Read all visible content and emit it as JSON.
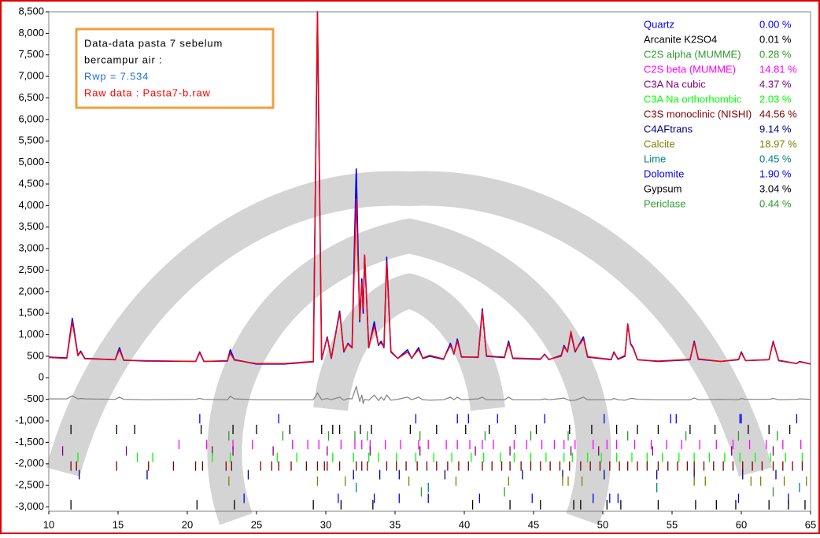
{
  "chart_data": {
    "type": "line",
    "annotation": {
      "lines": [
        "Data-data pasta 7 sebelum",
        "bercampur air :",
        "Rwp =  7.534",
        "Raw data : Pasta7-b.raw"
      ],
      "colors": [
        "#000000",
        "#000000",
        "#1f6fd0",
        "#ff0000"
      ]
    },
    "xlim": [
      10,
      65
    ],
    "xticks": [
      10,
      15,
      20,
      25,
      30,
      35,
      40,
      45,
      50,
      55,
      60,
      65
    ],
    "ylim": [
      -3100,
      8500
    ],
    "yticks": [
      {
        "value": -3000,
        "label": "-3,000"
      },
      {
        "value": -2500,
        "label": "-2,500"
      },
      {
        "value": -2000,
        "label": "-2,000"
      },
      {
        "value": -1500,
        "label": "-1,500"
      },
      {
        "value": -1000,
        "label": "-1,000"
      },
      -500,
      0,
      500,
      {
        "value": 1000,
        "label": "1,000"
      },
      {
        "value": 1500,
        "label": "1,500"
      },
      {
        "value": 2000,
        "label": "2,000"
      },
      {
        "value": 2500,
        "label": "2,500"
      },
      {
        "value": 3000,
        "label": "3,000"
      },
      {
        "value": 3500,
        "label": "3,500"
      },
      {
        "value": 4000,
        "label": "4,000"
      },
      {
        "value": 4500,
        "label": "4,500"
      },
      {
        "value": 5000,
        "label": "5,000"
      },
      {
        "value": 5500,
        "label": "5,500"
      },
      {
        "value": 6000,
        "label": "6,000"
      },
      {
        "value": 6500,
        "label": "6,500"
      },
      {
        "value": 7000,
        "label": "7,000"
      },
      {
        "value": 7500,
        "label": "7,500"
      },
      {
        "value": 8000,
        "label": "8,000"
      },
      {
        "value": 8500,
        "label": "8,500"
      }
    ],
    "x": [
      10.0,
      11.3,
      11.7,
      12.1,
      12.3,
      12.6,
      14.8,
      15.1,
      15.4,
      17.0,
      20.6,
      20.9,
      21.2,
      22.9,
      23.1,
      23.4,
      25.0,
      27.0,
      29.1,
      29.4,
      29.7,
      30.1,
      30.4,
      31.0,
      31.3,
      31.6,
      31.9,
      32.2,
      32.45,
      32.6,
      32.7,
      32.8,
      33.1,
      33.5,
      33.8,
      34.0,
      34.2,
      34.4,
      34.7,
      35.2,
      35.9,
      36.2,
      36.7,
      37.0,
      37.5,
      38.5,
      39.0,
      39.25,
      39.5,
      39.8,
      41.0,
      41.3,
      41.6,
      42.9,
      43.2,
      43.5,
      45.5,
      45.8,
      46.1,
      47.0,
      47.2,
      47.45,
      47.7,
      48.0,
      48.6,
      48.9,
      50.6,
      50.8,
      51.1,
      51.6,
      51.8,
      52.0,
      52.2,
      52.5,
      54.0,
      56.3,
      56.6,
      56.9,
      58.5,
      59.8,
      60.0,
      60.3,
      62.0,
      62.3,
      62.7,
      64.0,
      64.2,
      65.0
    ],
    "series": [
      {
        "color": "#808080",
        "width": 1.2,
        "values": [
          -490,
          -490,
          -420,
          -490,
          -480,
          -490,
          -500,
          -450,
          -500,
          -510,
          -500,
          -480,
          -500,
          -510,
          -430,
          -490,
          -510,
          -510,
          -510,
          -350,
          -510,
          -480,
          -510,
          -450,
          -520,
          -480,
          -490,
          -200,
          -550,
          -400,
          -600,
          -500,
          -520,
          -400,
          -530,
          -450,
          -520,
          -400,
          -520,
          -500,
          -450,
          -510,
          -450,
          -510,
          -520,
          -510,
          -450,
          -510,
          -450,
          -510,
          -490,
          -450,
          -510,
          -510,
          -450,
          -510,
          -510,
          -490,
          -510,
          -480,
          -470,
          -510,
          -530,
          -520,
          -450,
          -510,
          -510,
          -480,
          -510,
          -520,
          -500,
          -480,
          -480,
          -500,
          -510,
          -510,
          -470,
          -510,
          -500,
          -510,
          -480,
          -500,
          -500,
          -480,
          -510,
          -500,
          -490,
          -500
        ]
      },
      {
        "color": "#0000ff",
        "width": 1.6,
        "values": [
          480,
          460,
          1380,
          520,
          620,
          450,
          420,
          700,
          410,
          390,
          380,
          600,
          380,
          390,
          650,
          420,
          320,
          320,
          370,
          8500,
          420,
          950,
          450,
          1550,
          600,
          800,
          700,
          4850,
          1300,
          2300,
          1500,
          2850,
          700,
          1300,
          750,
          850,
          700,
          2800,
          600,
          450,
          650,
          450,
          700,
          450,
          500,
          430,
          800,
          550,
          900,
          480,
          480,
          1600,
          500,
          470,
          850,
          450,
          430,
          550,
          420,
          520,
          750,
          600,
          1050,
          600,
          950,
          480,
          420,
          600,
          430,
          500,
          1250,
          800,
          700,
          420,
          380,
          420,
          850,
          430,
          380,
          420,
          600,
          400,
          420,
          850,
          400,
          330,
          380,
          320
        ]
      },
      {
        "color": "#ff0000",
        "width": 1.4,
        "values": [
          470,
          450,
          1300,
          510,
          600,
          440,
          420,
          650,
          410,
          400,
          380,
          580,
          380,
          400,
          580,
          410,
          330,
          330,
          380,
          8500,
          430,
          930,
          460,
          1500,
          620,
          780,
          690,
          4150,
          1350,
          2200,
          1600,
          2850,
          720,
          1200,
          780,
          800,
          720,
          2700,
          620,
          450,
          600,
          460,
          650,
          460,
          520,
          440,
          750,
          560,
          850,
          490,
          470,
          1550,
          510,
          480,
          800,
          460,
          440,
          540,
          430,
          500,
          720,
          610,
          1080,
          620,
          900,
          490,
          430,
          580,
          440,
          520,
          1250,
          780,
          680,
          420,
          390,
          430,
          820,
          440,
          380,
          430,
          580,
          400,
          420,
          830,
          410,
          330,
          370,
          320
        ]
      }
    ],
    "phases": [
      {
        "name": "Quartz",
        "percent": "0.00 %",
        "color": "#0000ff",
        "row": -950,
        "ticks": [
          20.9,
          26.6,
          36.5,
          39.5,
          40.3,
          42.4,
          45.8,
          50.1,
          54.9,
          55.3,
          59.9,
          60.0,
          64.0
        ]
      },
      {
        "name": "Arcanite K2SO4",
        "percent": "0.01 %",
        "color": "#000000",
        "row": -1200,
        "ticks": [
          11.6,
          14.9,
          16.2,
          21.0,
          23.3,
          25.0,
          27.4,
          29.7,
          30.5,
          31.0,
          32.5,
          33.3,
          36.1,
          38.0,
          40.1,
          41.8,
          43.7,
          45.2,
          47.6,
          49.2,
          51.0,
          52.5,
          54.0,
          56.3,
          58.1,
          60.5,
          62.0,
          63.5
        ]
      },
      {
        "name": "C2S alpha (MUMME)",
        "percent": "0.28 %",
        "color": "#2e9a2e",
        "row": -1350,
        "ticks": [
          23.0,
          26.9,
          30.2,
          32.1,
          33.0,
          36.8,
          41.5,
          44.8,
          47.5,
          51.8,
          56.0,
          59.8,
          62.6
        ]
      },
      {
        "name": "C2S beta (MUMME)",
        "percent": "14.81 %",
        "color": "#ff00ff",
        "row": -1550,
        "ticks": [
          19.4,
          21.4,
          23.3,
          24.7,
          27.6,
          28.7,
          29.5,
          31.1,
          32.1,
          32.6,
          33.2,
          34.3,
          35.4,
          36.7,
          37.4,
          38.7,
          39.5,
          40.4,
          41.3,
          42.1,
          43.6,
          44.5,
          45.6,
          46.5,
          47.2,
          48.0,
          49.3,
          50.3,
          51.0,
          52.3,
          53.5,
          54.6,
          55.7,
          57.0,
          58.2,
          59.4,
          60.6,
          61.8,
          63.0,
          64.3
        ]
      },
      {
        "name": "C3A Na cubic",
        "percent": "4.37 %",
        "color": "#800080",
        "row": -1700,
        "ticks": [
          11.0,
          15.6,
          21.8,
          23.3,
          26.2,
          30.1,
          33.2,
          36.8,
          40.8,
          43.3,
          47.7,
          49.7,
          53.6,
          59.3,
          62.3
        ]
      },
      {
        "name": "C3A Na orthorhombic",
        "percent": "2.03 %",
        "color": "#00ff00",
        "row": -1850,
        "ticks": [
          12.1,
          16.4,
          17.5,
          21.8,
          23.1,
          26.5,
          27.9,
          30.5,
          32.0,
          33.1,
          33.8,
          35.1,
          36.5,
          37.8,
          39.1,
          40.5,
          41.4,
          42.6,
          43.6,
          44.8,
          45.9,
          47.2,
          47.8,
          48.9,
          49.9,
          51.0,
          52.1,
          53.2,
          54.3,
          55.5,
          56.6,
          57.7,
          58.8,
          59.9,
          61.0,
          62.1,
          63.2,
          64.4
        ]
      },
      {
        "name": "C3S monoclinic (NISHI)",
        "percent": "44.56 %",
        "color": "#800000",
        "row": -2050,
        "ticks": [
          11.6,
          12.0,
          14.9,
          17.2,
          19.0,
          20.6,
          21.1,
          22.8,
          23.2,
          25.3,
          26.1,
          26.6,
          27.5,
          28.6,
          29.4,
          29.9,
          30.1,
          31.0,
          32.2,
          32.6,
          33.0,
          34.4,
          35.1,
          35.8,
          36.6,
          37.3,
          38.0,
          38.8,
          39.6,
          40.3,
          41.3,
          42.0,
          42.7,
          43.3,
          44.1,
          44.8,
          45.5,
          46.2,
          46.9,
          47.6,
          48.4,
          49.1,
          49.8,
          50.5,
          51.2,
          51.8,
          52.5,
          53.2,
          54.0,
          54.7,
          55.4,
          56.1,
          56.6,
          57.3,
          58.0,
          58.7,
          59.4,
          60.1,
          60.8,
          61.5,
          62.3,
          63.0,
          63.7,
          64.4
        ]
      },
      {
        "name": "C4AFtrans",
        "percent": "9.14 %",
        "color": "#000080",
        "row": -2250,
        "ticks": [
          12.2,
          17.1,
          24.4,
          32.0,
          33.9,
          35.3,
          38.6,
          44.2,
          47.1,
          50.1,
          53.9,
          56.6,
          60.1,
          62.5
        ]
      },
      {
        "name": "Calcite",
        "percent": "18.97 %",
        "color": "#808000",
        "row": -2400,
        "ticks": [
          23.0,
          29.4,
          31.4,
          36.0,
          39.4,
          43.2,
          47.1,
          47.5,
          48.5,
          56.6,
          57.4,
          60.7,
          61.4,
          63.1,
          64.7
        ]
      },
      {
        "name": "Lime",
        "percent": "0.45 %",
        "color": "#008080",
        "row": -2550,
        "ticks": [
          32.2,
          37.4,
          53.9,
          64.2
        ]
      },
      {
        "name": "Dolomite",
        "percent": "1.90 %",
        "color": "#0000ff",
        "row": -2800,
        "ticks": [
          24.1,
          30.9,
          33.5,
          35.3,
          37.4,
          41.1,
          44.9,
          49.3,
          50.5,
          51.1,
          59.8,
          63.4
        ]
      },
      {
        "name": "Gypsum",
        "percent": "3.04 %",
        "color": "#000000",
        "row": -2950,
        "ticks": [
          11.6,
          20.7,
          23.4,
          29.1,
          31.1,
          33.4,
          40.6,
          43.3,
          45.5,
          47.9,
          48.4,
          50.3,
          51.3,
          54.0,
          56.7,
          58.2,
          59.6,
          62.0,
          63.4,
          64.6
        ]
      },
      {
        "name": "Periclase",
        "percent": "0.44 %",
        "color": "#2e9a2e",
        "row": -2650,
        "ticks": [
          36.9,
          42.9,
          62.3
        ]
      }
    ]
  }
}
